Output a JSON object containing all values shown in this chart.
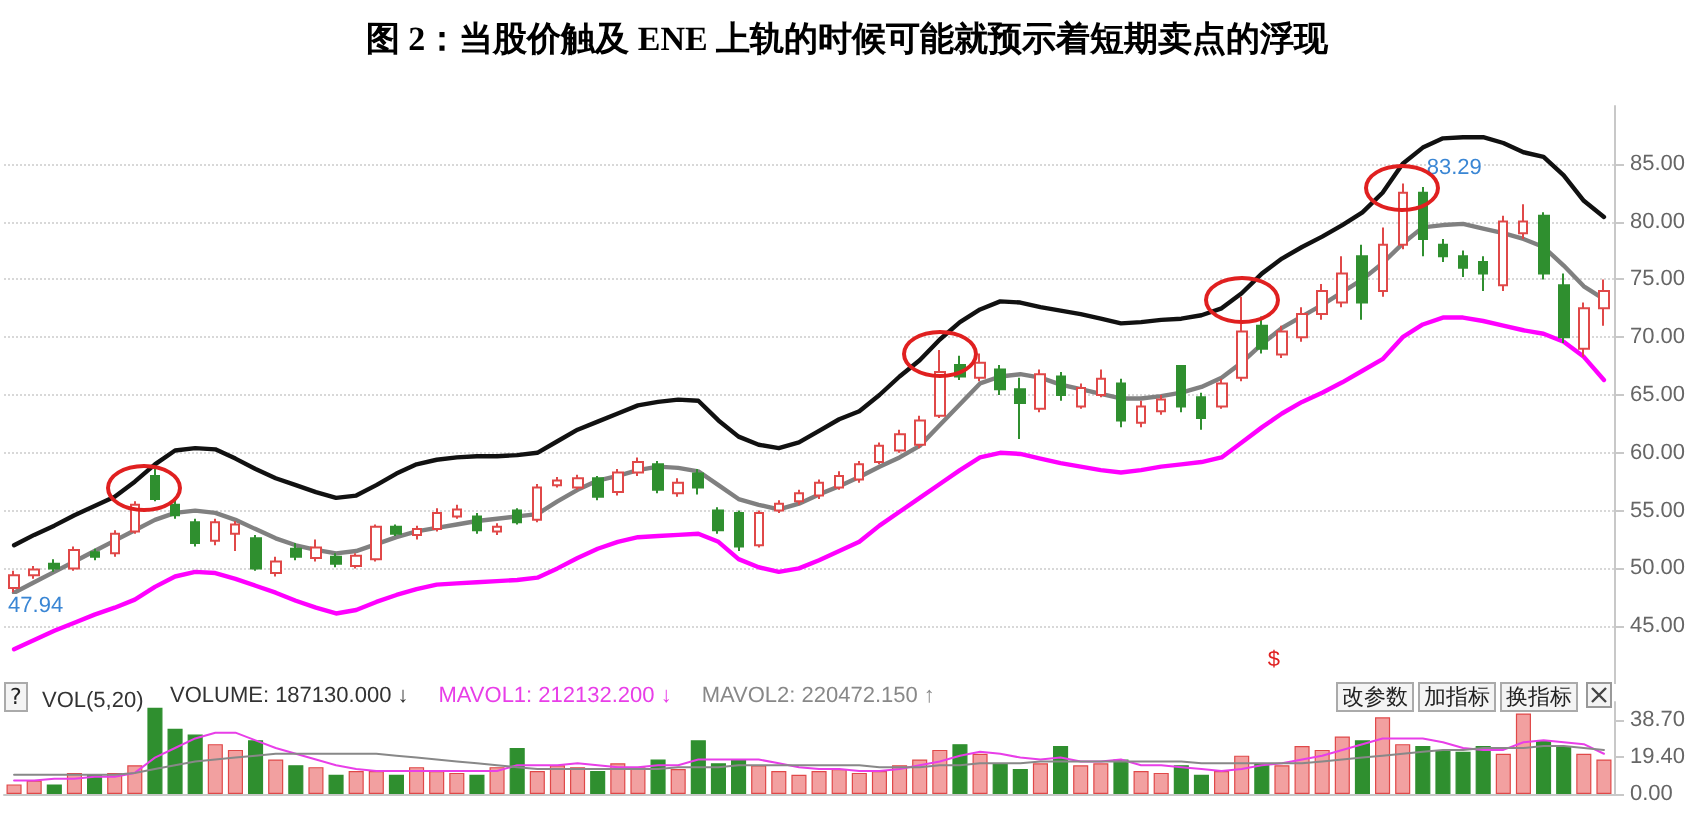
{
  "chart_data": [
    {
      "type": "candlestick",
      "title": "图 2：当股价触及 ENE 上轨的时候可能就预示着短期卖点的浮现",
      "categories": [
        null,
        null,
        null,
        null,
        null,
        null,
        null,
        null,
        null,
        null,
        null,
        null,
        null,
        null,
        null,
        null,
        null,
        null,
        null,
        null,
        null,
        null,
        null,
        null,
        null,
        null,
        null,
        null,
        null,
        null,
        null,
        null,
        null,
        null,
        null,
        null,
        null,
        null,
        null,
        null,
        null,
        null,
        null,
        null,
        null,
        null,
        null,
        null,
        null,
        null,
        null,
        null,
        null,
        null,
        null,
        null,
        null,
        null,
        null,
        null,
        null,
        null,
        null,
        null,
        null,
        null,
        null,
        null,
        null,
        null,
        null,
        null,
        null,
        null,
        null,
        null,
        null,
        null,
        null,
        null
      ],
      "ohlc": [
        [
          48.3,
          49.8,
          47.94,
          49.4
        ],
        [
          49.4,
          50.2,
          49.1,
          49.9
        ],
        [
          50.4,
          50.8,
          49.7,
          50.0
        ],
        [
          50.0,
          51.9,
          49.8,
          51.6
        ],
        [
          51.4,
          51.7,
          50.7,
          51.0
        ],
        [
          51.3,
          53.3,
          51.0,
          53.0
        ],
        [
          53.2,
          55.8,
          53.0,
          55.5
        ],
        [
          58.0,
          58.8,
          55.8,
          56.0
        ],
        [
          55.5,
          55.9,
          54.3,
          54.6
        ],
        [
          54.0,
          54.3,
          51.9,
          52.2
        ],
        [
          52.4,
          54.3,
          52.0,
          54.0
        ],
        [
          53.0,
          54.1,
          51.5,
          53.8
        ],
        [
          52.6,
          52.9,
          49.8,
          50.0
        ],
        [
          49.6,
          51.0,
          49.3,
          50.6
        ],
        [
          51.7,
          52.2,
          50.7,
          51.0
        ],
        [
          50.9,
          52.5,
          50.6,
          51.8
        ],
        [
          51.0,
          51.3,
          50.1,
          50.4
        ],
        [
          50.2,
          51.3,
          50.0,
          51.1
        ],
        [
          50.8,
          53.8,
          50.6,
          53.6
        ],
        [
          53.6,
          53.8,
          52.8,
          53.0
        ],
        [
          52.9,
          53.7,
          52.5,
          53.4
        ],
        [
          53.4,
          55.2,
          53.2,
          54.8
        ],
        [
          54.5,
          55.5,
          54.3,
          55.1
        ],
        [
          54.5,
          54.8,
          53.0,
          53.3
        ],
        [
          53.2,
          53.9,
          52.9,
          53.6
        ],
        [
          55.0,
          55.2,
          53.8,
          54.0
        ],
        [
          54.2,
          57.3,
          54.0,
          57.0
        ],
        [
          57.2,
          57.9,
          57.0,
          57.6
        ],
        [
          57.0,
          58.1,
          56.8,
          57.8
        ],
        [
          57.8,
          58.0,
          55.9,
          56.2
        ],
        [
          56.6,
          58.6,
          56.3,
          58.3
        ],
        [
          58.3,
          59.6,
          58.0,
          59.2
        ],
        [
          59.0,
          59.3,
          56.5,
          56.8
        ],
        [
          56.5,
          57.8,
          56.2,
          57.4
        ],
        [
          58.2,
          58.6,
          56.4,
          57.0
        ],
        [
          55.0,
          55.3,
          53.0,
          53.3
        ],
        [
          54.8,
          55.0,
          51.5,
          51.9
        ],
        [
          52.0,
          55.0,
          51.8,
          54.8
        ],
        [
          55.0,
          55.9,
          54.8,
          55.6
        ],
        [
          55.8,
          56.8,
          55.5,
          56.5
        ],
        [
          56.3,
          57.7,
          56.0,
          57.4
        ],
        [
          57.0,
          58.4,
          56.8,
          58.0
        ],
        [
          57.7,
          59.3,
          57.4,
          59.0
        ],
        [
          59.2,
          60.9,
          59.0,
          60.6
        ],
        [
          60.2,
          62.0,
          60.0,
          61.6
        ],
        [
          60.7,
          63.2,
          60.4,
          62.8
        ],
        [
          63.2,
          68.9,
          63.0,
          67.0
        ],
        [
          67.6,
          68.4,
          66.3,
          66.6
        ],
        [
          66.5,
          68.6,
          66.2,
          67.8
        ],
        [
          67.2,
          67.6,
          65.0,
          65.5
        ],
        [
          65.5,
          66.5,
          61.2,
          64.3
        ],
        [
          63.8,
          67.2,
          63.5,
          66.8
        ],
        [
          66.6,
          67.0,
          64.5,
          65.0
        ],
        [
          64.0,
          66.0,
          63.8,
          65.6
        ],
        [
          65.0,
          67.2,
          64.8,
          66.4
        ],
        [
          66.0,
          66.4,
          62.2,
          62.8
        ],
        [
          62.6,
          64.5,
          62.2,
          64.0
        ],
        [
          63.6,
          65.0,
          63.3,
          64.6
        ],
        [
          67.5,
          67.6,
          63.5,
          64.0
        ],
        [
          64.8,
          65.2,
          62.0,
          63.0
        ],
        [
          64.0,
          66.4,
          63.8,
          66.0
        ],
        [
          66.5,
          73.5,
          66.2,
          70.5
        ],
        [
          71.0,
          71.8,
          68.6,
          69.0
        ],
        [
          68.5,
          71.0,
          68.2,
          70.5
        ],
        [
          70.0,
          72.6,
          69.6,
          72.0
        ],
        [
          72.0,
          74.6,
          71.5,
          74.0
        ],
        [
          73.0,
          77.0,
          72.6,
          75.5
        ],
        [
          77.0,
          78.0,
          71.5,
          73.0
        ],
        [
          74.0,
          79.5,
          73.5,
          78.0
        ],
        [
          78.0,
          83.29,
          77.6,
          82.5
        ],
        [
          82.5,
          83.0,
          77.0,
          78.5
        ],
        [
          78.0,
          78.5,
          76.5,
          77.0
        ],
        [
          77.0,
          77.5,
          75.2,
          76.0
        ],
        [
          76.5,
          77.0,
          74.0,
          75.5
        ],
        [
          74.5,
          80.5,
          74.0,
          80.0
        ],
        [
          79.0,
          81.5,
          78.5,
          80.0
        ],
        [
          80.5,
          80.8,
          75.0,
          75.5
        ],
        [
          74.5,
          75.5,
          69.5,
          70.0
        ],
        [
          69.0,
          73.0,
          68.3,
          72.5
        ],
        [
          72.5,
          75.0,
          71.0,
          74.0
        ]
      ],
      "colors": [
        "#e04848",
        "#e04848",
        "#2f8f2f",
        "#e04848",
        "#2f8f2f",
        "#e04848",
        "#e04848",
        "#2f8f2f",
        "#2f8f2f",
        "#2f8f2f",
        "#e04848",
        "#e04848",
        "#2f8f2f",
        "#e04848",
        "#2f8f2f",
        "#e04848",
        "#2f8f2f",
        "#e04848",
        "#e04848",
        "#2f8f2f",
        "#e04848",
        "#e04848",
        "#e04848",
        "#2f8f2f",
        "#e04848",
        "#2f8f2f",
        "#e04848",
        "#e04848",
        "#e04848",
        "#2f8f2f",
        "#e04848",
        "#e04848",
        "#2f8f2f",
        "#e04848",
        "#2f8f2f",
        "#2f8f2f",
        "#2f8f2f",
        "#e04848",
        "#e04848",
        "#e04848",
        "#e04848",
        "#e04848",
        "#e04848",
        "#e04848",
        "#e04848",
        "#e04848",
        "#e04848",
        "#2f8f2f",
        "#e04848",
        "#2f8f2f",
        "#2f8f2f",
        "#e04848",
        "#2f8f2f",
        "#e04848",
        "#e04848",
        "#2f8f2f",
        "#e04848",
        "#e04848",
        "#2f8f2f",
        "#2f8f2f",
        "#e04848",
        "#e04848",
        "#2f8f2f",
        "#e04848",
        "#e04848",
        "#e04848",
        "#e04848",
        "#2f8f2f",
        "#e04848",
        "#e04848",
        "#2f8f2f",
        "#2f8f2f",
        "#2f8f2f",
        "#2f8f2f",
        "#e04848",
        "#e04848",
        "#2f8f2f",
        "#2f8f2f",
        "#e04848",
        "#e04848"
      ],
      "series": [
        {
          "type": "line",
          "color": "#111111",
          "values": [
            52.0,
            52.9,
            53.7,
            54.6,
            55.4,
            56.2,
            57.5,
            59.0,
            60.2,
            60.4,
            60.3,
            59.5,
            58.6,
            57.8,
            57.2,
            56.6,
            56.1,
            56.3,
            57.2,
            58.2,
            59.0,
            59.4,
            59.6,
            59.7,
            59.7,
            59.8,
            60.0,
            61.0,
            62.0,
            62.7,
            63.4,
            64.1,
            64.4,
            64.6,
            64.5,
            62.8,
            61.4,
            60.7,
            60.4,
            60.9,
            61.9,
            62.9,
            63.6,
            65.0,
            66.6,
            68.0,
            69.8,
            71.3,
            72.4,
            73.1,
            73.0,
            72.6,
            72.3,
            72.0,
            71.6,
            71.2,
            71.3,
            71.5,
            71.6,
            71.9,
            72.5,
            73.8,
            75.5,
            76.8,
            77.8,
            78.7,
            79.7,
            80.8,
            82.5,
            85.0,
            86.4,
            87.2,
            87.3,
            87.3,
            86.8,
            86.0,
            85.6,
            84.0,
            81.8,
            80.4
          ]
        },
        {
          "type": "line",
          "color": "#808080",
          "values": [
            47.9,
            48.8,
            49.7,
            50.6,
            51.5,
            52.4,
            53.3,
            54.2,
            54.8,
            55.0,
            54.8,
            54.2,
            53.4,
            52.6,
            52.0,
            51.6,
            51.3,
            51.5,
            52.1,
            52.7,
            53.2,
            53.5,
            53.8,
            54.1,
            54.3,
            54.5,
            54.7,
            55.8,
            56.8,
            57.6,
            58.0,
            58.5,
            58.8,
            58.7,
            58.4,
            57.2,
            56.0,
            55.5,
            55.1,
            55.6,
            56.4,
            57.1,
            57.9,
            58.8,
            59.6,
            60.6,
            62.4,
            64.2,
            66.0,
            66.6,
            66.8,
            66.5,
            65.9,
            65.5,
            65.1,
            64.7,
            64.7,
            64.9,
            65.2,
            65.7,
            66.5,
            67.8,
            69.4,
            70.8,
            71.8,
            72.8,
            73.9,
            75.0,
            76.4,
            78.1,
            79.5,
            79.7,
            79.8,
            79.4,
            79.0,
            78.5,
            77.8,
            76.2,
            74.4,
            73.3
          ]
        },
        {
          "type": "line",
          "color": "#ff00ff",
          "values": [
            43.0,
            43.8,
            44.6,
            45.3,
            46.0,
            46.6,
            47.3,
            48.4,
            49.3,
            49.7,
            49.6,
            49.1,
            48.5,
            47.9,
            47.2,
            46.6,
            46.1,
            46.4,
            47.1,
            47.7,
            48.2,
            48.6,
            48.7,
            48.8,
            48.9,
            49.0,
            49.2,
            50.0,
            50.9,
            51.7,
            52.3,
            52.7,
            52.8,
            52.9,
            53.0,
            52.3,
            50.8,
            50.1,
            49.7,
            50.0,
            50.7,
            51.5,
            52.3,
            53.7,
            54.9,
            56.1,
            57.3,
            58.5,
            59.6,
            60.0,
            59.9,
            59.5,
            59.1,
            58.8,
            58.5,
            58.3,
            58.5,
            58.8,
            59.0,
            59.2,
            59.6,
            60.9,
            62.2,
            63.4,
            64.4,
            65.2,
            66.1,
            67.1,
            68.1,
            70.0,
            71.1,
            71.7,
            71.7,
            71.4,
            71.0,
            70.6,
            70.3,
            69.6,
            68.3,
            66.3
          ]
        }
      ],
      "ylim": [
        40,
        90
      ],
      "yticks": [
        {
          "value": 45,
          "label": "45.00"
        },
        {
          "value": 50,
          "label": "50.00"
        },
        {
          "value": 55,
          "label": "55.00"
        },
        {
          "value": 60,
          "label": "60.00"
        },
        {
          "value": 65,
          "label": "65.00"
        },
        {
          "value": 70,
          "label": "70.00"
        },
        {
          "value": 75,
          "label": "75.00"
        },
        {
          "value": 80,
          "label": "80.00"
        },
        {
          "value": 85,
          "label": "85.00"
        }
      ],
      "grid": "y",
      "tick_labels": "y",
      "marker": "none",
      "line_style": "solid",
      "annotations": [
        "47.94",
        "83.29",
        "$"
      ]
    },
    {
      "type": "bar",
      "title": "VOL(5,20)",
      "categories": [
        null,
        null,
        null,
        null,
        null,
        null,
        null,
        null,
        null,
        null,
        null,
        null,
        null,
        null,
        null,
        null,
        null,
        null,
        null,
        null,
        null,
        null,
        null,
        null,
        null,
        null,
        null,
        null,
        null,
        null,
        null,
        null,
        null,
        null,
        null,
        null,
        null,
        null,
        null,
        null,
        null,
        null,
        null,
        null,
        null,
        null,
        null,
        null,
        null,
        null,
        null,
        null,
        null,
        null,
        null,
        null,
        null,
        null,
        null,
        null,
        null,
        null,
        null,
        null,
        null,
        null,
        null,
        null,
        null,
        null,
        null,
        null,
        null,
        null,
        null,
        null,
        null,
        null,
        null,
        null
      ],
      "series": [
        {
          "name": "VOLUME: 187130.000 ↓",
          "colors": [
            "#f2a0a0",
            "#f2a0a0",
            "#2f8f2f",
            "#f2a0a0",
            "#2f8f2f",
            "#f2a0a0",
            "#f2a0a0",
            "#2f8f2f",
            "#2f8f2f",
            "#2f8f2f",
            "#f2a0a0",
            "#f2a0a0",
            "#2f8f2f",
            "#f2a0a0",
            "#2f8f2f",
            "#f2a0a0",
            "#2f8f2f",
            "#f2a0a0",
            "#f2a0a0",
            "#2f8f2f",
            "#f2a0a0",
            "#f2a0a0",
            "#f2a0a0",
            "#2f8f2f",
            "#f2a0a0",
            "#2f8f2f",
            "#f2a0a0",
            "#f2a0a0",
            "#f2a0a0",
            "#2f8f2f",
            "#f2a0a0",
            "#f2a0a0",
            "#2f8f2f",
            "#f2a0a0",
            "#2f8f2f",
            "#2f8f2f",
            "#2f8f2f",
            "#f2a0a0",
            "#f2a0a0",
            "#f2a0a0",
            "#f2a0a0",
            "#f2a0a0",
            "#f2a0a0",
            "#f2a0a0",
            "#f2a0a0",
            "#f2a0a0",
            "#f2a0a0",
            "#2f8f2f",
            "#f2a0a0",
            "#2f8f2f",
            "#2f8f2f",
            "#f2a0a0",
            "#2f8f2f",
            "#f2a0a0",
            "#f2a0a0",
            "#2f8f2f",
            "#f2a0a0",
            "#f2a0a0",
            "#2f8f2f",
            "#2f8f2f",
            "#f2a0a0",
            "#f2a0a0",
            "#2f8f2f",
            "#f2a0a0",
            "#f2a0a0",
            "#f2a0a0",
            "#f2a0a0",
            "#2f8f2f",
            "#f2a0a0",
            "#f2a0a0",
            "#2f8f2f",
            "#2f8f2f",
            "#2f8f2f",
            "#2f8f2f",
            "#f2a0a0",
            "#f2a0a0",
            "#2f8f2f",
            "#2f8f2f",
            "#f2a0a0",
            "#f2a0a0"
          ],
          "values": [
            5,
            7,
            5,
            11,
            10,
            11,
            15,
            45,
            34,
            31,
            26,
            23,
            28,
            18,
            15,
            14,
            10,
            12,
            12,
            10,
            14,
            12,
            11,
            10,
            14,
            24,
            12,
            15,
            14,
            12,
            16,
            14,
            18,
            13,
            28,
            16,
            18,
            15,
            12,
            10,
            12,
            13,
            11,
            12,
            15,
            18,
            23,
            26,
            21,
            16,
            13,
            16,
            25,
            15,
            16,
            18,
            12,
            11,
            15,
            10,
            12,
            20,
            16,
            15,
            25,
            23,
            30,
            28,
            40,
            26,
            25,
            23,
            22,
            25,
            21,
            42,
            28,
            25,
            21,
            18
          ]
        },
        {
          "type": "line",
          "name": "MAVOL1: 212132.200 ↓",
          "color": "#e83ee8",
          "values": [
            7,
            7,
            8,
            8,
            9,
            9,
            11,
            19,
            24,
            29,
            32,
            32,
            28,
            24,
            21,
            18,
            15,
            13,
            12,
            12,
            12,
            12,
            12,
            12,
            12,
            15,
            15,
            15,
            16,
            15,
            14,
            14,
            15,
            15,
            18,
            18,
            18,
            18,
            16,
            14,
            13,
            13,
            12,
            12,
            13,
            15,
            17,
            20,
            22,
            21,
            19,
            18,
            19,
            17,
            17,
            18,
            15,
            15,
            14,
            13,
            12,
            13,
            15,
            16,
            18,
            20,
            23,
            26,
            29,
            29,
            29,
            27,
            24,
            23,
            23,
            27,
            28,
            27,
            26,
            21
          ]
        },
        {
          "type": "line",
          "name": "MAVOL2: 220472.150 ↑",
          "color": "#888888",
          "values": [
            10,
            10,
            10,
            10,
            10,
            10,
            11,
            13,
            15,
            17,
            18,
            19,
            20,
            21,
            21,
            21,
            21,
            21,
            21,
            20,
            19,
            18,
            17,
            16,
            15,
            14,
            13,
            13,
            13,
            13,
            13,
            13,
            13,
            14,
            14,
            14,
            15,
            15,
            15,
            15,
            15,
            15,
            15,
            14,
            14,
            14,
            15,
            15,
            16,
            16,
            16,
            17,
            17,
            17,
            17,
            17,
            17,
            17,
            17,
            16,
            16,
            16,
            16,
            16,
            16,
            17,
            18,
            19,
            20,
            21,
            22,
            23,
            23,
            24,
            24,
            24,
            25,
            25,
            24,
            23
          ]
        }
      ],
      "ylim": [
        0,
        48
      ],
      "yticks": [
        {
          "value": 0,
          "label": "0.00"
        },
        {
          "value": 19.4,
          "label": "19.40"
        },
        {
          "value": 38.7,
          "label": "38.70"
        }
      ],
      "tick_labels": "y",
      "marker": "none",
      "legend": "top left",
      "annotations": [
        "?",
        "改参数",
        "加指标",
        "换指标"
      ]
    }
  ]
}
